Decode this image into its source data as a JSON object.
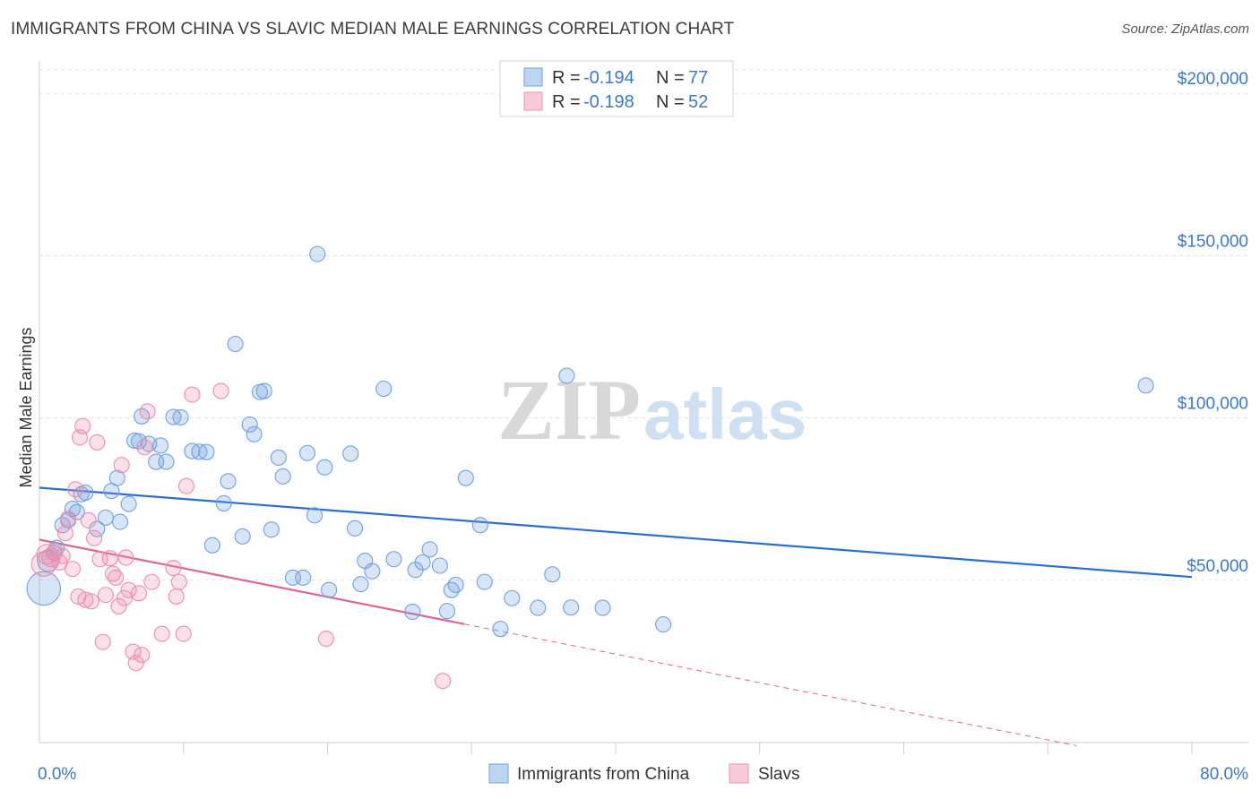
{
  "title": "IMMIGRANTS FROM CHINA VS SLAVIC MEDIAN MALE EARNINGS CORRELATION CHART",
  "source": "Source: ZipAtlas.com",
  "watermark": {
    "zip": "ZIP",
    "atlas": "atlas"
  },
  "colors": {
    "blue": "#6fa1e0",
    "blue_fill": "rgba(111,161,224,0.28)",
    "blue_line": "#2a6fd0",
    "pink": "#ec8fae",
    "pink_fill": "rgba(236,143,174,0.28)",
    "pink_line": "#e06595",
    "accent_text": "#3b78c9"
  },
  "legend": {
    "rows": [
      {
        "r_label": "R = ",
        "r_value": "-0.194",
        "n_label": "N = ",
        "n_value": "77"
      },
      {
        "r_label": "R = ",
        "r_value": "-0.198",
        "n_label": "N = ",
        "n_value": "52"
      }
    ]
  },
  "bottom_legend": [
    "Immigrants from China",
    "Slavs"
  ],
  "chart_data": {
    "type": "scatter",
    "xlabel": "",
    "ylabel": "Median Male Earnings",
    "xlim": [
      0,
      80
    ],
    "ylim": [
      0,
      210000
    ],
    "x_tick_labels": {
      "left": "0.0%",
      "right": "80.0%"
    },
    "y_ticks": [
      {
        "value": 50000,
        "label": "$50,000"
      },
      {
        "value": 100000,
        "label": "$100,000"
      },
      {
        "value": 150000,
        "label": "$150,000"
      },
      {
        "value": 200000,
        "label": "$200,000"
      }
    ],
    "series": [
      {
        "name": "Immigrants from China",
        "color_key": "blue",
        "trend": {
          "x": [
            0,
            80
          ],
          "y": [
            78500,
            51000
          ],
          "dashed_from": null
        },
        "points": [
          [
            0.3,
            47500,
            2.2
          ],
          [
            0.6,
            56000,
            1.4
          ],
          [
            1.0,
            58500,
            1
          ],
          [
            1.2,
            60000,
            1
          ],
          [
            1.6,
            67000,
            1
          ],
          [
            2.0,
            68500,
            1
          ],
          [
            2.3,
            72000,
            1
          ],
          [
            2.6,
            71000,
            1
          ],
          [
            2.9,
            76500,
            1
          ],
          [
            3.2,
            77000,
            1
          ],
          [
            4.0,
            65800,
            1
          ],
          [
            4.6,
            69300,
            1
          ],
          [
            5.0,
            77500,
            1
          ],
          [
            5.4,
            81500,
            1
          ],
          [
            5.6,
            68000,
            1
          ],
          [
            6.2,
            73500,
            1
          ],
          [
            6.6,
            93000,
            1
          ],
          [
            6.9,
            92800,
            1
          ],
          [
            7.1,
            100500,
            1
          ],
          [
            7.6,
            92000,
            1
          ],
          [
            8.1,
            86500,
            1
          ],
          [
            8.4,
            91500,
            1
          ],
          [
            8.8,
            86500,
            1
          ],
          [
            9.3,
            100300,
            1
          ],
          [
            9.8,
            100200,
            1
          ],
          [
            10.6,
            89800,
            1
          ],
          [
            11.1,
            89600,
            1
          ],
          [
            11.6,
            89500,
            1
          ],
          [
            12.0,
            60800,
            1
          ],
          [
            12.8,
            73700,
            1
          ],
          [
            13.1,
            80500,
            1
          ],
          [
            13.6,
            122800,
            1
          ],
          [
            14.1,
            63500,
            1
          ],
          [
            14.6,
            98000,
            1
          ],
          [
            14.9,
            95000,
            1
          ],
          [
            15.3,
            108000,
            1
          ],
          [
            15.6,
            108300,
            1
          ],
          [
            16.1,
            65600,
            1
          ],
          [
            16.6,
            87800,
            1
          ],
          [
            16.9,
            82000,
            1
          ],
          [
            17.6,
            50800,
            1
          ],
          [
            18.3,
            50800,
            1
          ],
          [
            18.6,
            89200,
            1
          ],
          [
            19.1,
            70000,
            1
          ],
          [
            19.3,
            150500,
            1
          ],
          [
            19.8,
            84800,
            1
          ],
          [
            20.1,
            47000,
            1
          ],
          [
            21.6,
            89000,
            1
          ],
          [
            21.9,
            66000,
            1
          ],
          [
            22.3,
            48800,
            1
          ],
          [
            22.6,
            56000,
            1
          ],
          [
            23.1,
            52800,
            1
          ],
          [
            23.9,
            109000,
            1
          ],
          [
            24.6,
            56500,
            1
          ],
          [
            25.9,
            40300,
            1
          ],
          [
            26.1,
            53200,
            1
          ],
          [
            26.6,
            55500,
            1
          ],
          [
            27.1,
            59500,
            1
          ],
          [
            27.8,
            54500,
            1
          ],
          [
            28.3,
            40500,
            1
          ],
          [
            28.6,
            47000,
            1
          ],
          [
            28.9,
            48600,
            1
          ],
          [
            29.6,
            81500,
            1
          ],
          [
            30.6,
            67000,
            1
          ],
          [
            30.9,
            49500,
            1
          ],
          [
            32.0,
            35000,
            1
          ],
          [
            32.8,
            44500,
            1
          ],
          [
            34.6,
            41500,
            1
          ],
          [
            35.6,
            51800,
            1
          ],
          [
            36.6,
            113000,
            1
          ],
          [
            36.9,
            41600,
            1
          ],
          [
            39.1,
            41500,
            1
          ],
          [
            43.3,
            36400,
            1
          ],
          [
            76.8,
            110000,
            1
          ]
        ]
      },
      {
        "name": "Slavs",
        "color_key": "pink",
        "trend": {
          "x": [
            0,
            80
          ],
          "y": [
            62500,
            -8000
          ],
          "dashed_from": 29.5
        },
        "points": [
          [
            0.3,
            55000,
            1.6
          ],
          [
            0.5,
            58000,
            1.3
          ],
          [
            0.8,
            57000,
            1.2
          ],
          [
            1.1,
            59000,
            1
          ],
          [
            1.4,
            55500,
            1
          ],
          [
            1.6,
            57500,
            1
          ],
          [
            1.8,
            64500,
            1
          ],
          [
            2.0,
            69000,
            1
          ],
          [
            2.3,
            53500,
            1
          ],
          [
            2.5,
            78000,
            1
          ],
          [
            2.7,
            45000,
            1
          ],
          [
            2.8,
            94000,
            1
          ],
          [
            3.0,
            97500,
            1
          ],
          [
            3.2,
            44000,
            1
          ],
          [
            3.4,
            68500,
            1
          ],
          [
            3.6,
            43500,
            1
          ],
          [
            3.8,
            63000,
            1
          ],
          [
            4.0,
            92500,
            1
          ],
          [
            4.2,
            56500,
            1
          ],
          [
            4.4,
            31000,
            1
          ],
          [
            4.6,
            45500,
            1
          ],
          [
            4.9,
            56800,
            1
          ],
          [
            5.1,
            52000,
            1
          ],
          [
            5.3,
            50800,
            1
          ],
          [
            5.5,
            42000,
            1
          ],
          [
            5.7,
            85500,
            1
          ],
          [
            5.9,
            44500,
            1
          ],
          [
            6.0,
            57000,
            1
          ],
          [
            6.2,
            47000,
            1
          ],
          [
            6.5,
            28000,
            1
          ],
          [
            6.7,
            24500,
            1
          ],
          [
            6.9,
            46000,
            1
          ],
          [
            7.1,
            27000,
            1
          ],
          [
            7.3,
            91000,
            1
          ],
          [
            7.5,
            102000,
            1
          ],
          [
            7.8,
            49500,
            1
          ],
          [
            8.5,
            33500,
            1
          ],
          [
            9.3,
            53800,
            1
          ],
          [
            9.5,
            45000,
            1
          ],
          [
            9.7,
            49500,
            1
          ],
          [
            10.0,
            33500,
            1
          ],
          [
            10.2,
            79000,
            1
          ],
          [
            10.6,
            107200,
            1
          ],
          [
            12.6,
            108300,
            1
          ],
          [
            19.9,
            32000,
            1
          ],
          [
            28.0,
            19000,
            1
          ]
        ]
      }
    ]
  }
}
